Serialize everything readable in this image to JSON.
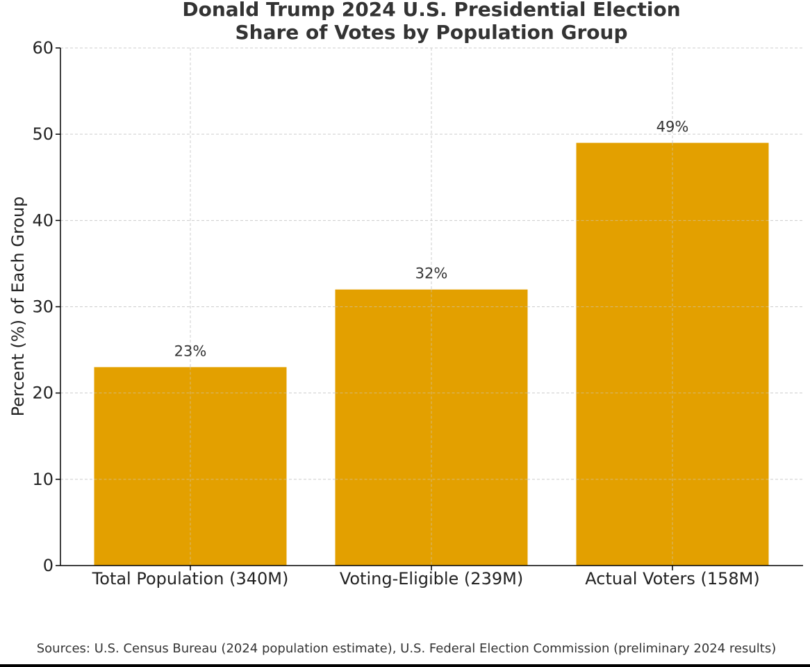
{
  "chart_data": {
    "type": "bar",
    "title": [
      "Donald Trump 2024 U.S. Presidential Election",
      "Share of Votes by Population Group"
    ],
    "categories": [
      "Total Population (340M)",
      "Voting-Eligible (239M)",
      "Actual Voters (158M)"
    ],
    "values": [
      23,
      32,
      49
    ],
    "data_labels": [
      "23%",
      "32%",
      "49%"
    ],
    "xlabel": "",
    "ylabel": "Percent (%) of Each Group",
    "ylim": [
      0,
      60
    ],
    "yticks": [
      0,
      10,
      20,
      30,
      40,
      50,
      60
    ],
    "bar_color": "#E3A000",
    "grid": true,
    "legend": "none",
    "source_note": "Sources: U.S. Census Bureau (2024 population estimate), U.S. Federal Election Commission (preliminary 2024 results)"
  }
}
